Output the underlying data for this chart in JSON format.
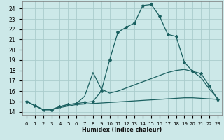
{
  "xlabel": "Humidex (Indice chaleur)",
  "background_color": "#cce8e8",
  "grid_color": "#aacccc",
  "line_color": "#1a6060",
  "xlim": [
    -0.5,
    23.5
  ],
  "ylim": [
    13.7,
    24.7
  ],
  "xticks": [
    0,
    1,
    2,
    3,
    4,
    5,
    6,
    7,
    8,
    9,
    10,
    11,
    12,
    13,
    14,
    15,
    16,
    17,
    18,
    19,
    20,
    21,
    22,
    23
  ],
  "yticks": [
    14,
    15,
    16,
    17,
    18,
    19,
    20,
    21,
    22,
    23,
    24
  ],
  "line1_x": [
    0,
    1,
    2,
    3,
    4,
    5,
    6,
    7,
    8,
    9,
    10,
    11,
    12,
    13,
    14,
    15,
    16,
    17,
    18,
    19,
    20,
    21,
    22,
    23
  ],
  "line1_y": [
    15.0,
    14.6,
    14.2,
    14.2,
    14.5,
    14.7,
    14.8,
    14.9,
    15.0,
    16.0,
    19.0,
    21.7,
    22.2,
    22.6,
    24.3,
    24.4,
    23.3,
    21.5,
    21.3,
    18.8,
    17.9,
    17.7,
    16.5,
    15.2
  ],
  "line2_x": [
    0,
    1,
    2,
    3,
    4,
    5,
    6,
    7,
    8,
    9,
    10,
    11,
    12,
    13,
    14,
    15,
    16,
    17,
    18,
    19,
    20,
    21,
    22,
    23
  ],
  "line2_y": [
    15.0,
    14.6,
    14.2,
    14.2,
    14.5,
    14.7,
    14.8,
    15.5,
    17.8,
    16.2,
    15.8,
    16.0,
    16.3,
    16.6,
    16.9,
    17.2,
    17.5,
    17.8,
    18.0,
    18.1,
    17.9,
    17.3,
    16.2,
    15.3
  ],
  "line3_x": [
    0,
    1,
    2,
    3,
    4,
    5,
    6,
    7,
    8,
    9,
    10,
    11,
    12,
    13,
    14,
    15,
    16,
    17,
    18,
    19,
    20,
    21,
    22,
    23
  ],
  "line3_y": [
    15.0,
    14.6,
    14.2,
    14.2,
    14.4,
    14.55,
    14.7,
    14.75,
    14.8,
    14.85,
    14.9,
    14.95,
    15.0,
    15.05,
    15.1,
    15.15,
    15.2,
    15.25,
    15.3,
    15.35,
    15.35,
    15.3,
    15.25,
    15.2
  ]
}
